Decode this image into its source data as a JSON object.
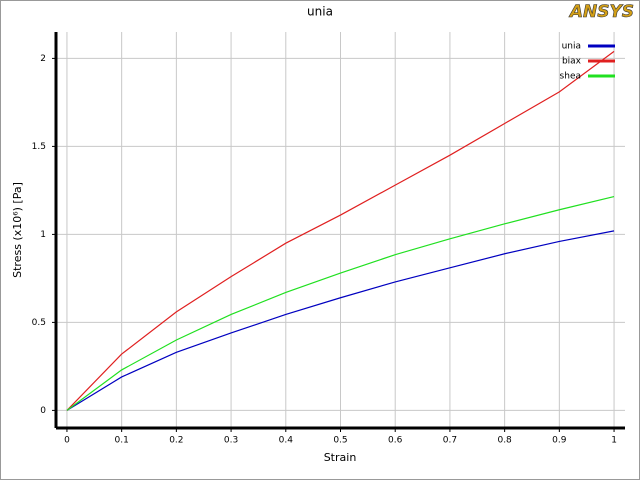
{
  "logo": "ANSYS",
  "chart_data": {
    "type": "line",
    "title": "unia",
    "x_label": "Strain",
    "y_label": "Stress  (x10⁶)  [Pa]",
    "x": [
      0,
      0.1,
      0.2,
      0.3,
      0.4,
      0.5,
      0.6,
      0.7,
      0.8,
      0.9,
      1
    ],
    "series": [
      {
        "name": "unia",
        "color": "#0000c0",
        "values": [
          0,
          0.19,
          0.33,
          0.44,
          0.545,
          0.64,
          0.73,
          0.81,
          0.89,
          0.96,
          1.02
        ]
      },
      {
        "name": "biax",
        "color": "#e02020",
        "values": [
          0,
          0.32,
          0.56,
          0.76,
          0.95,
          1.11,
          1.28,
          1.45,
          1.63,
          1.81,
          2.04
        ]
      },
      {
        "name": "shea",
        "color": "#20e020",
        "values": [
          0,
          0.23,
          0.4,
          0.545,
          0.67,
          0.78,
          0.885,
          0.975,
          1.06,
          1.14,
          1.215
        ]
      }
    ],
    "xlim": [
      -0.02,
      1.02
    ],
    "ylim": [
      -0.1,
      2.15
    ],
    "xticks": [
      0,
      0.1,
      0.2,
      0.3,
      0.4,
      0.5,
      0.6,
      0.7,
      0.8,
      0.9,
      1
    ],
    "yticks": [
      0,
      0.5,
      1,
      1.5,
      2
    ],
    "grid": true,
    "legend": "top-right"
  }
}
